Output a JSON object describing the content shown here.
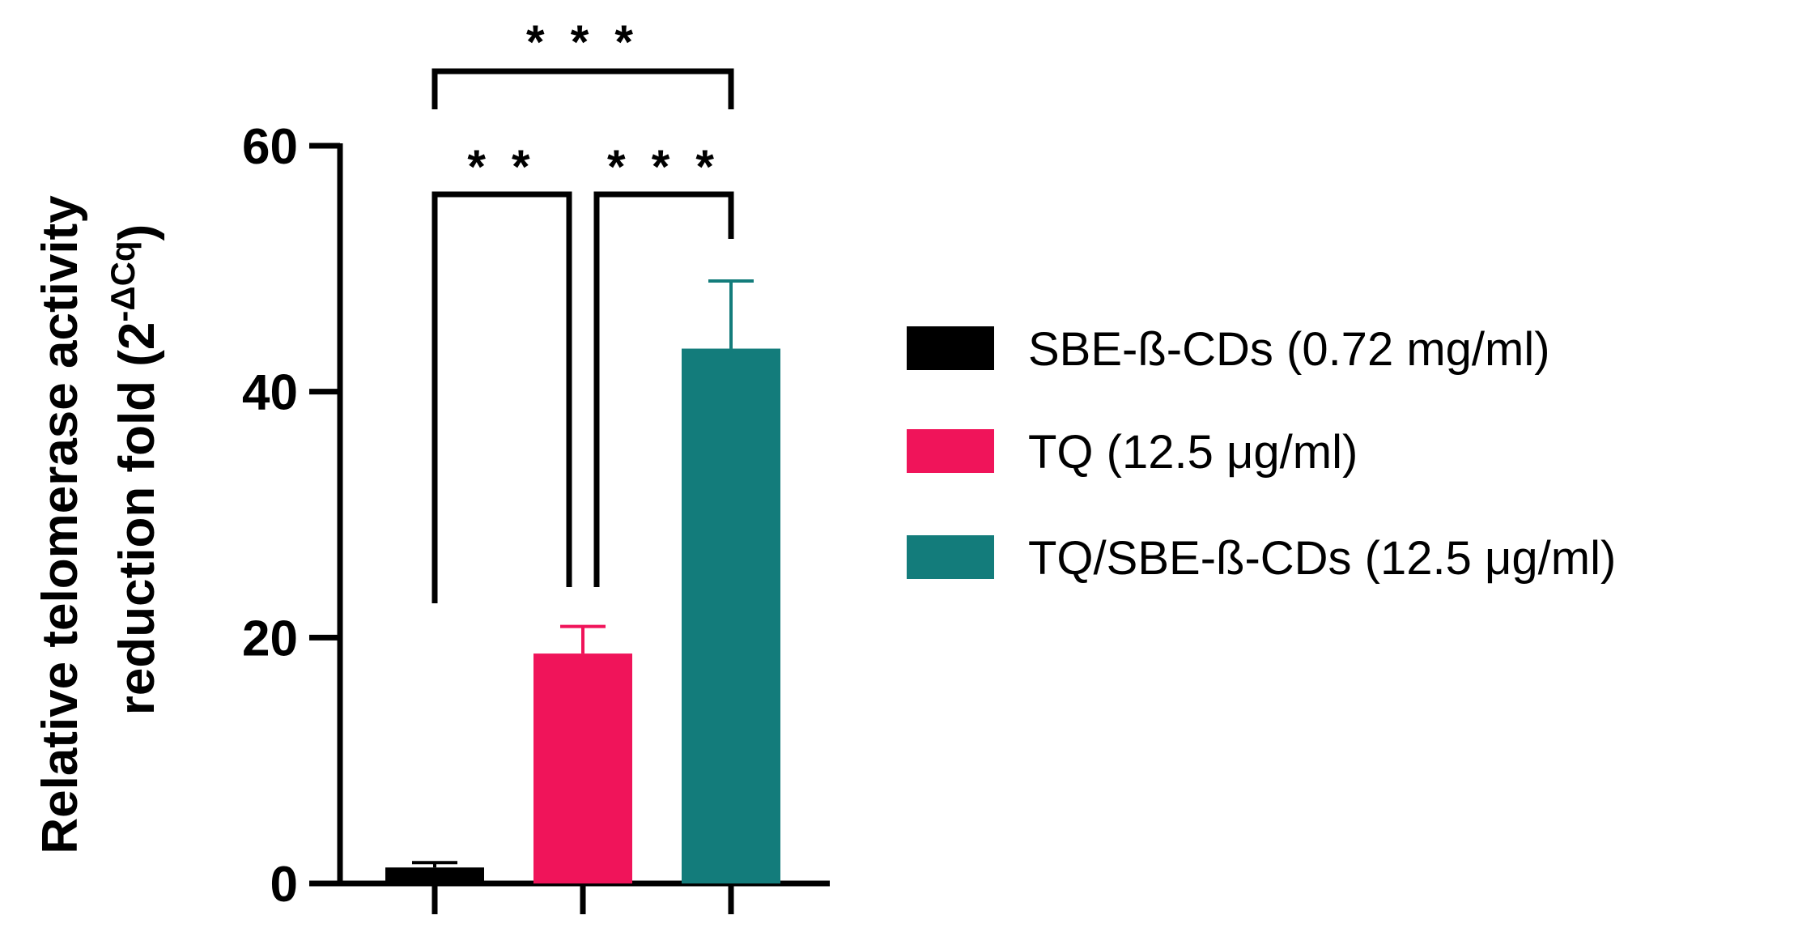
{
  "chart_data": {
    "type": "bar",
    "title": "",
    "xlabel": "",
    "ylabel": {
      "line1": "Relative telomerase activity",
      "line2_prefix": "reduction fold (2",
      "line2_sup": "-ΔCq",
      "line2_suffix": ")"
    },
    "ylim": [
      0,
      60
    ],
    "yticks": [
      0,
      20,
      40,
      60
    ],
    "grid": false,
    "legend_position": "right",
    "series": [
      {
        "name": "SBE-ß-CDs (0.72 mg/ml)",
        "value": 1.3,
        "error": 0.4,
        "color": "#000000"
      },
      {
        "name": "TQ (12.5 μg/ml)",
        "value": 18.7,
        "error": 2.2,
        "color": "#F0145A"
      },
      {
        "name": "TQ/SBE-ß-CDs (12.5 μg/ml)",
        "value": 43.5,
        "error": 5.5,
        "color": "#137C7B"
      }
    ],
    "significance": [
      {
        "from": 0,
        "to": 2,
        "label": "* * *"
      },
      {
        "from": 0,
        "to": 1,
        "label": "* *"
      },
      {
        "from": 1,
        "to": 2,
        "label": "* * *"
      }
    ]
  }
}
